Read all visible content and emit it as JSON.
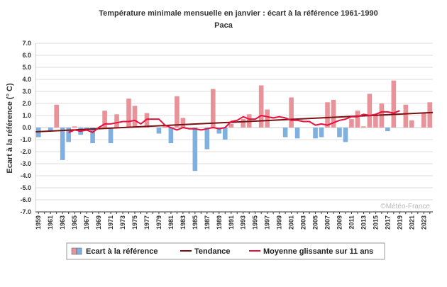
{
  "chart_data": {
    "type": "bar",
    "title": "Température minimale mensuelle en janvier : écart à la référence 1961-1990",
    "subtitle": "Paca",
    "ylabel": "Ecart à la référence (° C)",
    "xlabel": "",
    "ylim": [
      -7,
      7
    ],
    "y_ticks": [
      "7.0",
      "6.0",
      "5.0",
      "4.0",
      "3.0",
      "2.0",
      "1.0",
      "0.0",
      "-1.0",
      "-2.0",
      "-3.0",
      "-4.0",
      "-5.0",
      "-6.0",
      "-7.0"
    ],
    "x_start": 1959,
    "x_end": 2024,
    "x_tick_labels": [
      "1959",
      "1961",
      "1963",
      "1965",
      "1967",
      "1969",
      "1971",
      "1973",
      "1975",
      "1977",
      "1979",
      "1981",
      "1983",
      "1985",
      "1987",
      "1989",
      "1991",
      "1993",
      "1995",
      "1997",
      "1999",
      "2001",
      "2003",
      "2005",
      "2007",
      "2009",
      "2011",
      "2013",
      "2015",
      "2017",
      "2019",
      "2021",
      "2023"
    ],
    "grid": true,
    "legend_position": "bottom",
    "watermark": "©Météo-France",
    "colors": {
      "positive_bar": "#e8939a",
      "negative_bar": "#7fb0e0",
      "trend": "#7a1010",
      "moving_average": "#e8103c",
      "grid": "#dddddd"
    },
    "series": [
      {
        "name": "Ecart à la référence",
        "type": "bar",
        "x": [
          1959,
          1960,
          1961,
          1962,
          1963,
          1964,
          1965,
          1966,
          1967,
          1968,
          1969,
          1970,
          1971,
          1972,
          1973,
          1974,
          1975,
          1976,
          1977,
          1978,
          1979,
          1980,
          1981,
          1982,
          1983,
          1984,
          1985,
          1986,
          1987,
          1988,
          1989,
          1990,
          1991,
          1992,
          1993,
          1994,
          1995,
          1996,
          1997,
          1998,
          1999,
          2000,
          2001,
          2002,
          2003,
          2004,
          2005,
          2006,
          2007,
          2008,
          2009,
          2010,
          2011,
          2012,
          2013,
          2014,
          2015,
          2016,
          2017,
          2018,
          2019,
          2020,
          2021,
          2022,
          2023,
          2024
        ],
        "values": [
          -0.8,
          0.0,
          -0.3,
          1.9,
          -2.7,
          -1.2,
          0.1,
          -0.6,
          -0.3,
          -1.3,
          0.0,
          1.4,
          -1.3,
          1.1,
          0.0,
          2.4,
          1.8,
          0.0,
          1.2,
          0.0,
          -0.5,
          0.2,
          -1.3,
          2.6,
          0.8,
          0.0,
          -3.6,
          0.0,
          -1.8,
          3.2,
          -0.5,
          -1.0,
          0.3,
          0.0,
          0.7,
          1.1,
          0.0,
          3.5,
          1.5,
          0.0,
          0.0,
          -0.8,
          2.5,
          -0.9,
          0.0,
          0.0,
          -0.9,
          -0.8,
          2.1,
          2.3,
          -0.8,
          -1.2,
          0.7,
          1.4,
          0.1,
          2.8,
          1.0,
          2.0,
          -0.3,
          3.9,
          0.0,
          1.9,
          0.6,
          0.0,
          1.2,
          2.1
        ]
      },
      {
        "name": "Tendance",
        "type": "line",
        "x": [
          1959,
          2024
        ],
        "values": [
          -0.35,
          1.25
        ]
      },
      {
        "name": "Moyenne glissante sur 11 ans",
        "type": "line",
        "x": [
          1964,
          1965,
          1966,
          1967,
          1968,
          1969,
          1970,
          1971,
          1972,
          1973,
          1974,
          1975,
          1976,
          1977,
          1978,
          1979,
          1980,
          1981,
          1982,
          1983,
          1984,
          1985,
          1986,
          1987,
          1988,
          1989,
          1990,
          1991,
          1992,
          1993,
          1994,
          1995,
          1996,
          1997,
          1998,
          1999,
          2000,
          2001,
          2002,
          2003,
          2004,
          2005,
          2006,
          2007,
          2008,
          2009,
          2010,
          2011,
          2012,
          2013,
          2014,
          2015,
          2016,
          2017,
          2018,
          2019
        ],
        "values": [
          -0.4,
          -0.2,
          -0.3,
          -0.2,
          -0.4,
          0.0,
          0.3,
          0.3,
          0.4,
          0.5,
          0.5,
          0.6,
          0.3,
          0.7,
          0.7,
          0.7,
          0.2,
          0.0,
          -0.2,
          0.0,
          -0.1,
          -0.1,
          -0.2,
          -0.1,
          0.0,
          -0.1,
          0.0,
          0.5,
          0.6,
          0.9,
          0.7,
          0.7,
          1.0,
          0.9,
          0.8,
          0.9,
          0.8,
          0.6,
          0.6,
          0.5,
          0.5,
          0.2,
          0.3,
          0.2,
          0.4,
          0.6,
          0.7,
          0.9,
          0.9,
          1.1,
          1.0,
          1.1,
          1.3,
          1.3,
          1.2,
          1.4
        ]
      }
    ]
  }
}
